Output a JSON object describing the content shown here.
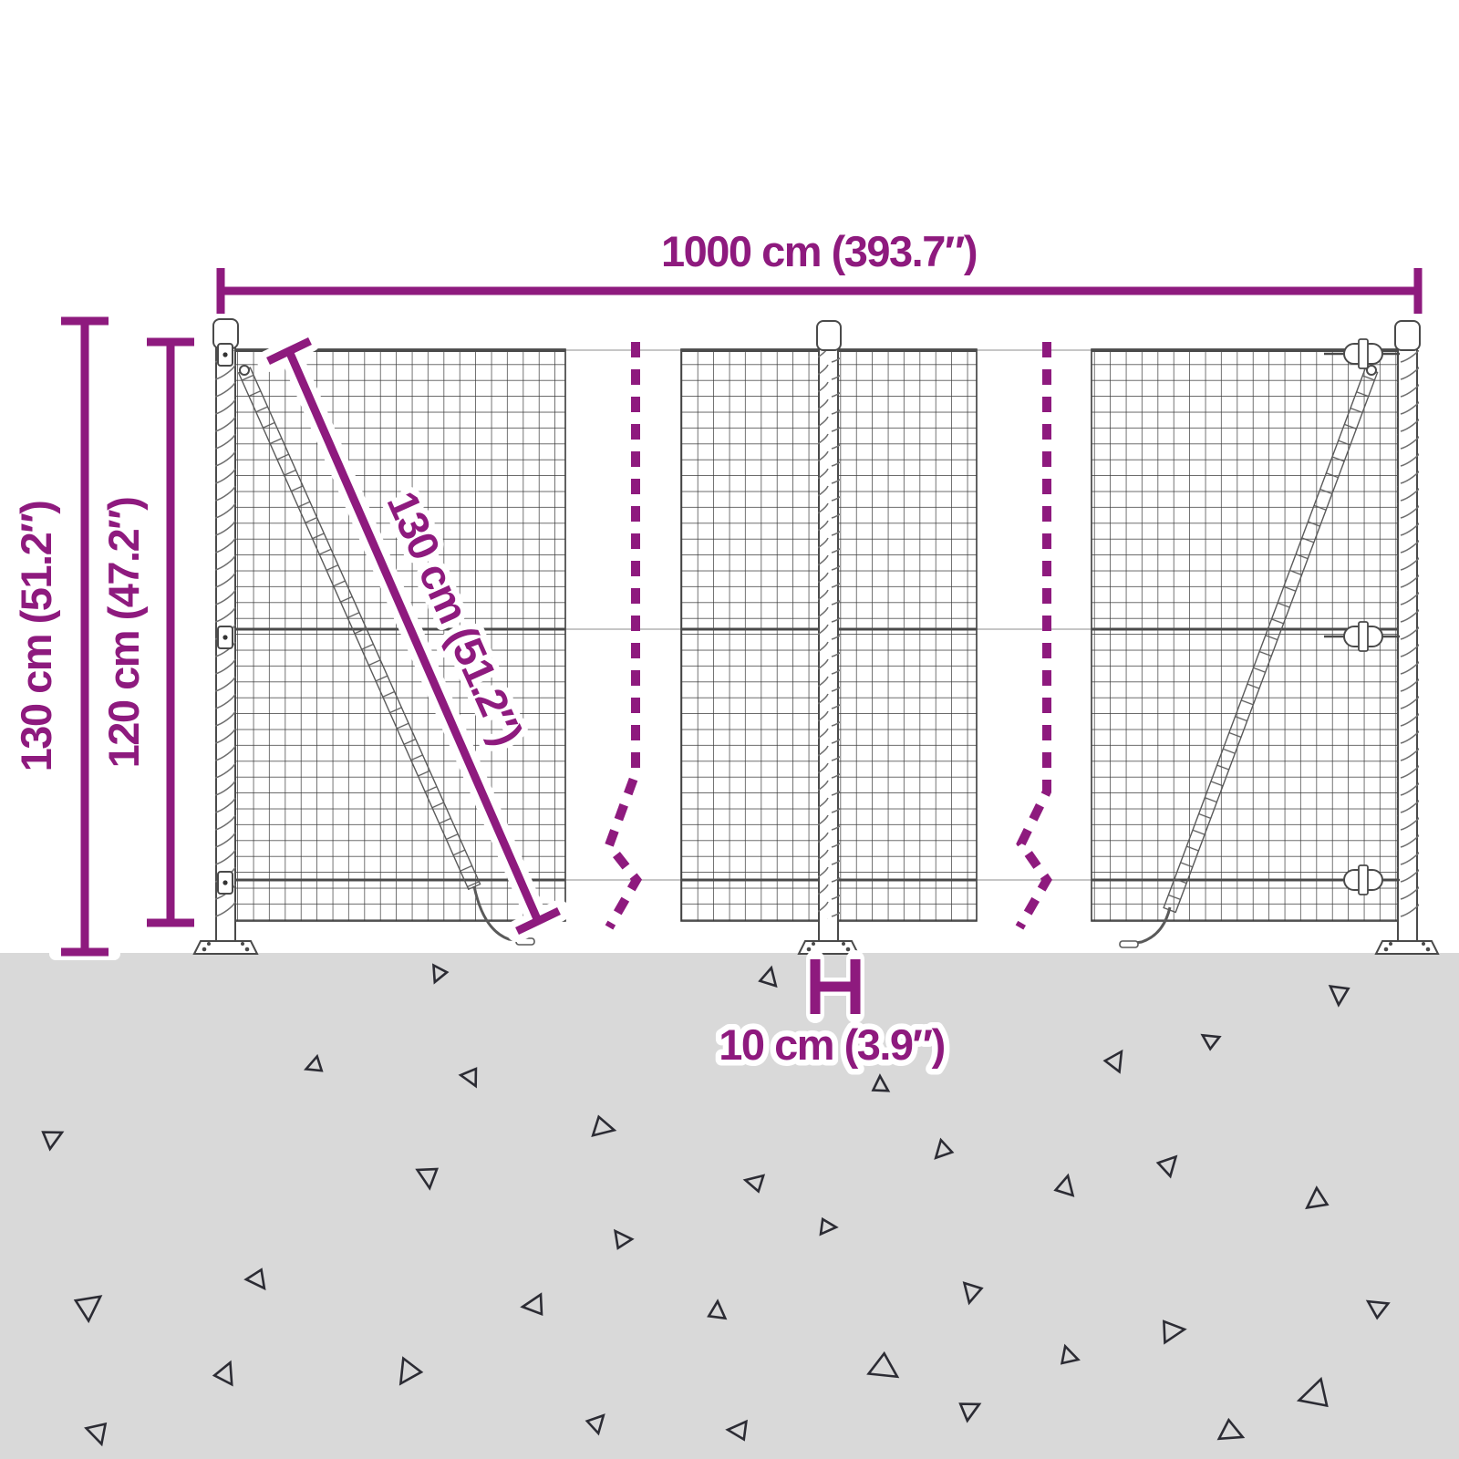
{
  "diagram": {
    "subject": "wire-mesh-fence-with-posts-dimension-diagram",
    "dimensions": {
      "width": {
        "label": "1000 cm (393.7″)",
        "value_cm": 1000,
        "value_in": 393.7
      },
      "total_height": {
        "label": "130 cm (51.2″)",
        "value_cm": 130,
        "value_in": 51.2
      },
      "mesh_height": {
        "label": "120 cm (47.2″)",
        "value_cm": 120,
        "value_in": 47.2
      },
      "diagonal": {
        "label": "130 cm (51.2″)",
        "value_cm": 130,
        "value_in": 51.2
      },
      "post_depth": {
        "label": "10 cm (3.9″)",
        "value_cm": 10,
        "value_in": 3.9
      }
    },
    "colors": {
      "accent": "#8E1A7E",
      "ground": "#D9D9D9",
      "halo": "#FFFFFF",
      "wire": "#3A3A3A"
    }
  }
}
